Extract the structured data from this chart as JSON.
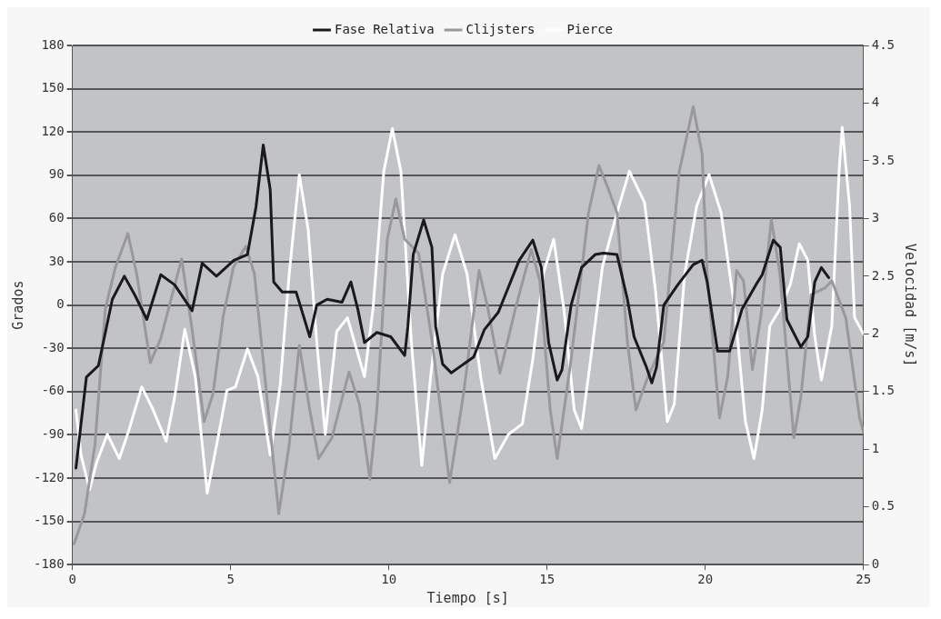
{
  "chart_data": {
    "type": "line",
    "xlabel": "Tiempo [s]",
    "ylabel": "Grados",
    "y2label": "Velocidad [m/s]",
    "xlim": [
      0,
      25
    ],
    "xticks": [
      0,
      5,
      10,
      15,
      20,
      25
    ],
    "ylim": [
      -180,
      180
    ],
    "yticks": [
      -180,
      -150,
      -120,
      -90,
      -60,
      -30,
      0,
      30,
      60,
      90,
      120,
      150,
      180
    ],
    "y2lim": [
      0,
      4.5
    ],
    "y2ticks": [
      0,
      0.5,
      1,
      1.5,
      2,
      2.5,
      3,
      3.5,
      4,
      4.5
    ],
    "grid": "y",
    "legend": "top",
    "marker": "none",
    "line_style": "solid",
    "series": [
      {
        "name": "Fase Relativa",
        "color": "#1a1a1a",
        "x": [
          0.11,
          0.44,
          0.82,
          1.26,
          1.64,
          1.97,
          2.35,
          2.79,
          3.23,
          3.78,
          4.1,
          4.55,
          5.1,
          5.53,
          5.8,
          6.03,
          6.25,
          6.36,
          6.63,
          7.07,
          7.5,
          7.72,
          8.05,
          8.52,
          8.8,
          9.02,
          9.23,
          9.62,
          10.06,
          10.5,
          10.6,
          10.77,
          11.1,
          11.36,
          11.48,
          11.7,
          11.97,
          12.68,
          13.02,
          13.46,
          14.12,
          14.55,
          14.82,
          15.05,
          15.32,
          15.47,
          15.76,
          16.09,
          16.52,
          16.78,
          17.21,
          17.54,
          17.75,
          18.14,
          18.31,
          18.46,
          18.69,
          19.13,
          19.62,
          19.9,
          20.06,
          20.39,
          20.77,
          21.16,
          21.6,
          21.8,
          22.15,
          22.37,
          22.58,
          23.02,
          23.24,
          23.46,
          23.67,
          23.9
        ],
        "values": [
          -113,
          -50,
          -42,
          4,
          20,
          7,
          -10,
          21,
          14,
          -4,
          29,
          20,
          31,
          35,
          68,
          111,
          80,
          16,
          9,
          9,
          -22,
          0,
          4,
          2,
          16,
          -3,
          -26,
          -19,
          -22,
          -35,
          -15,
          35,
          59,
          40,
          -15,
          -41,
          -47,
          -36,
          -17,
          -5,
          31,
          45,
          26,
          -26,
          -52,
          -45,
          0,
          26,
          35,
          36,
          35,
          4,
          -22,
          -43,
          -54,
          -43,
          0,
          14,
          28,
          31,
          16,
          -32,
          -32,
          -3,
          14,
          21,
          45,
          40,
          -10,
          -29,
          -22,
          16,
          26,
          19
        ]
      },
      {
        "name": "Clijsters",
        "color": "#999999",
        "axis": "y2",
        "x": [
          0.05,
          0.38,
          0.71,
          1.04,
          1.36,
          1.75,
          2.03,
          2.46,
          2.79,
          3.45,
          3.78,
          4.16,
          4.44,
          4.77,
          5.09,
          5.48,
          5.75,
          6.08,
          6.52,
          6.85,
          7.17,
          7.5,
          7.78,
          8.2,
          8.74,
          9.07,
          9.4,
          9.62,
          9.95,
          10.22,
          10.5,
          10.94,
          11.37,
          11.92,
          12.36,
          12.85,
          13.13,
          13.51,
          14.0,
          14.5,
          14.77,
          15.1,
          15.32,
          15.76,
          16.31,
          16.64,
          16.93,
          17.21,
          17.54,
          17.81,
          18.19,
          18.69,
          19.18,
          19.62,
          19.9,
          20.06,
          20.45,
          20.71,
          20.99,
          21.21,
          21.49,
          21.76,
          22.09,
          22.36,
          22.8,
          23.02,
          23.35,
          23.79,
          24.0,
          24.44,
          24.88,
          25
        ],
        "values": [
          0.18,
          0.44,
          1.04,
          2.22,
          2.58,
          2.87,
          2.52,
          1.75,
          1.96,
          2.65,
          2.04,
          1.24,
          1.48,
          2.16,
          2.58,
          2.76,
          2.52,
          1.63,
          0.44,
          1.04,
          1.9,
          1.34,
          0.92,
          1.1,
          1.67,
          1.39,
          0.74,
          1.34,
          2.82,
          3.17,
          2.82,
          2.7,
          1.93,
          0.71,
          1.48,
          2.55,
          2.22,
          1.66,
          2.22,
          2.73,
          2.46,
          1.34,
          0.92,
          1.78,
          3.05,
          3.46,
          3.26,
          3.05,
          1.93,
          1.34,
          1.63,
          1.93,
          3.41,
          3.97,
          3.56,
          2.52,
          1.27,
          1.63,
          2.55,
          2.46,
          1.69,
          2.16,
          2.99,
          2.52,
          1.1,
          1.45,
          2.34,
          2.4,
          2.46,
          2.14,
          1.27,
          1.15
        ]
      },
      {
        "name": "Pierce",
        "color": "#ffffff",
        "axis": "y2",
        "x": [
          0.11,
          0.27,
          0.54,
          0.77,
          1.1,
          1.48,
          1.8,
          2.19,
          2.52,
          2.96,
          3.23,
          3.55,
          3.88,
          4.26,
          4.6,
          4.88,
          5.15,
          5.53,
          5.86,
          6.25,
          6.57,
          6.85,
          7.17,
          7.45,
          7.72,
          7.99,
          8.35,
          8.69,
          9.23,
          9.5,
          9.84,
          10.11,
          10.38,
          10.71,
          11.04,
          11.32,
          11.7,
          12.09,
          12.47,
          12.9,
          13.35,
          13.78,
          14.22,
          14.55,
          14.88,
          15.21,
          15.53,
          15.86,
          16.09,
          16.42,
          16.75,
          17.21,
          17.6,
          18.08,
          18.43,
          18.8,
          19.02,
          19.35,
          19.73,
          20.12,
          20.5,
          20.93,
          21.27,
          21.54,
          21.8,
          22.04,
          22.37,
          22.69,
          22.97,
          23.24,
          23.46,
          23.67,
          24.0,
          24.23,
          24.33,
          24.56,
          24.72,
          25
        ],
        "values": [
          1.34,
          0.95,
          0.65,
          0.89,
          1.13,
          0.92,
          1.18,
          1.54,
          1.36,
          1.07,
          1.45,
          2.04,
          1.63,
          0.62,
          1.1,
          1.51,
          1.54,
          1.87,
          1.63,
          0.95,
          1.57,
          2.52,
          3.38,
          2.9,
          1.93,
          1.13,
          2.02,
          2.14,
          1.63,
          2.22,
          3.41,
          3.78,
          3.41,
          1.93,
          0.86,
          1.63,
          2.52,
          2.86,
          2.52,
          1.63,
          0.92,
          1.13,
          1.22,
          1.78,
          2.52,
          2.82,
          2.22,
          1.34,
          1.18,
          1.87,
          2.58,
          3.05,
          3.41,
          3.14,
          2.37,
          1.24,
          1.39,
          2.52,
          3.11,
          3.38,
          3.05,
          2.22,
          1.24,
          0.92,
          1.34,
          2.07,
          2.22,
          2.43,
          2.78,
          2.64,
          1.98,
          1.6,
          2.07,
          3.41,
          3.79,
          3.11,
          2.14,
          2.0
        ]
      }
    ]
  }
}
